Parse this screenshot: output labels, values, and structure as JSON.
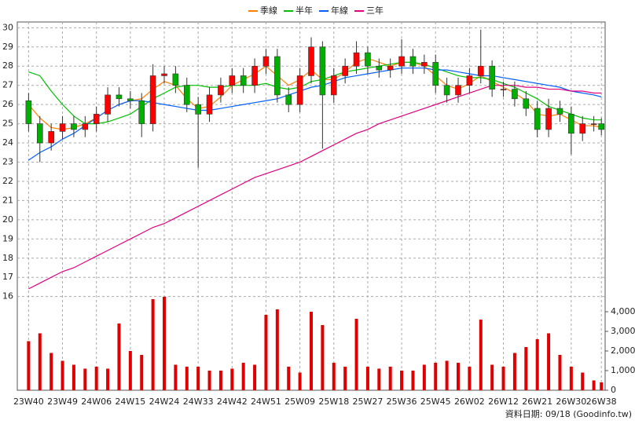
{
  "chart_data": {
    "type": "candlestick",
    "x": [
      0,
      3,
      6,
      9,
      12,
      15,
      18,
      21,
      24,
      27,
      30,
      33,
      36,
      39,
      42,
      45,
      48,
      51,
      54,
      57,
      60,
      63,
      66,
      69,
      72,
      75,
      78,
      81,
      84,
      87,
      90,
      93,
      96,
      99,
      102,
      105,
      108,
      111,
      114,
      117,
      120,
      123,
      126,
      129,
      132,
      135,
      138,
      141,
      144,
      147,
      150,
      152
    ],
    "open": [
      26.2,
      25.0,
      24.0,
      24.6,
      25.0,
      24.7,
      25.0,
      25.5,
      26.5,
      26.3,
      26.2,
      25.0,
      27.5,
      27.6,
      27.0,
      26.0,
      25.5,
      26.5,
      27.0,
      27.5,
      27.0,
      28.0,
      28.5,
      26.5,
      26.0,
      27.5,
      29.0,
      26.5,
      27.5,
      28.0,
      28.7,
      28.0,
      27.8,
      28.0,
      28.5,
      28.0,
      28.2,
      27.0,
      26.5,
      27.0,
      27.5,
      28.0,
      26.8,
      26.8,
      26.3,
      25.8,
      24.7,
      25.8,
      25.5,
      24.5,
      25.0,
      25.0
    ],
    "high": [
      26.6,
      25.4,
      25.0,
      25.4,
      25.4,
      25.4,
      25.9,
      26.9,
      26.9,
      26.7,
      26.6,
      28.1,
      28.0,
      28.0,
      27.4,
      26.4,
      26.9,
      27.4,
      27.9,
      27.9,
      28.4,
      28.9,
      28.9,
      26.9,
      27.9,
      29.5,
      29.3,
      27.9,
      28.4,
      29.3,
      29.0,
      28.4,
      28.4,
      29.4,
      28.9,
      28.6,
      28.6,
      27.4,
      27.4,
      27.9,
      29.9,
      28.3,
      27.2,
      27.2,
      26.7,
      26.2,
      26.3,
      26.2,
      25.9,
      25.4,
      25.4,
      25.3
    ],
    "low": [
      24.6,
      23.0,
      23.6,
      24.2,
      24.3,
      24.3,
      24.6,
      25.1,
      25.9,
      25.8,
      24.3,
      24.6,
      27.1,
      26.6,
      25.6,
      22.7,
      25.1,
      26.1,
      26.6,
      26.6,
      26.6,
      27.6,
      26.1,
      25.6,
      25.6,
      27.1,
      23.7,
      26.1,
      27.1,
      27.6,
      27.6,
      27.4,
      27.4,
      27.6,
      27.6,
      27.6,
      26.6,
      26.1,
      26.1,
      26.6,
      27.1,
      26.4,
      26.4,
      25.9,
      25.4,
      24.3,
      24.3,
      25.1,
      23.4,
      24.1,
      24.6,
      24.4
    ],
    "close": [
      25.0,
      24.0,
      24.6,
      25.0,
      24.7,
      25.0,
      25.5,
      26.5,
      26.3,
      26.2,
      25.0,
      27.5,
      27.6,
      27.0,
      26.0,
      25.5,
      26.5,
      27.0,
      27.5,
      27.0,
      28.0,
      28.5,
      26.5,
      26.0,
      27.5,
      29.0,
      26.5,
      27.5,
      28.0,
      28.7,
      28.0,
      27.8,
      28.0,
      28.5,
      28.0,
      28.2,
      27.0,
      26.5,
      27.0,
      27.5,
      28.0,
      26.8,
      26.8,
      26.3,
      25.8,
      24.7,
      25.8,
      25.5,
      24.5,
      25.0,
      25.0,
      24.7
    ],
    "volume": [
      2500,
      2900,
      1900,
      1500,
      1300,
      1100,
      1200,
      1100,
      3400,
      2000,
      1800,
      4640,
      4760,
      1300,
      1200,
      1200,
      1000,
      1000,
      1100,
      1400,
      1300,
      3840,
      4120,
      1200,
      900,
      4000,
      3320,
      1400,
      1200,
      3640,
      1200,
      1100,
      1200,
      1000,
      1000,
      1300,
      1400,
      1500,
      1400,
      1200,
      3600,
      1300,
      1200,
      1900,
      2200,
      2600,
      2900,
      1800,
      1200,
      900,
      500,
      400
    ],
    "up_color": "#ff0000",
    "down_color": "#00b000",
    "volume_color": "#e00000",
    "series": [
      {
        "name": "季線",
        "color": "#ff8000",
        "values": [
          26.0,
          25.3,
          24.8,
          24.7,
          24.8,
          25.0,
          25.3,
          25.7,
          26.0,
          26.2,
          26.3,
          26.8,
          27.2,
          27.0,
          26.3,
          25.8,
          25.9,
          26.4,
          27.0,
          27.3,
          27.6,
          28.0,
          27.5,
          27.0,
          27.3,
          27.8,
          27.3,
          27.3,
          27.7,
          28.2,
          28.4,
          28.2,
          28.0,
          28.2,
          28.2,
          28.0,
          27.5,
          27.0,
          26.8,
          27.1,
          27.5,
          27.2,
          26.9,
          26.6,
          26.2,
          25.5,
          25.4,
          25.5,
          25.2,
          24.9,
          24.9,
          24.8
        ]
      },
      {
        "name": "半年",
        "color": "#00c000",
        "values": [
          27.7,
          27.5,
          26.7,
          26.0,
          25.4,
          25.0,
          25.0,
          25.1,
          25.3,
          25.5,
          25.9,
          26.3,
          26.6,
          26.9,
          27.0,
          27.0,
          26.9,
          26.9,
          27.0,
          27.0,
          27.0,
          27.1,
          26.9,
          26.8,
          26.9,
          27.2,
          27.3,
          27.5,
          27.7,
          27.8,
          27.9,
          28.0,
          28.1,
          28.2,
          28.2,
          28.1,
          27.9,
          27.7,
          27.5,
          27.4,
          27.4,
          27.3,
          27.1,
          26.9,
          26.6,
          26.3,
          25.9,
          25.7,
          25.5,
          25.3,
          25.2,
          25.2
        ]
      },
      {
        "name": "年線",
        "color": "#0060ff",
        "values": [
          23.1,
          23.5,
          23.8,
          24.2,
          24.5,
          24.9,
          25.3,
          25.7,
          26.0,
          26.2,
          26.2,
          26.1,
          26.0,
          25.9,
          25.8,
          25.7,
          25.7,
          25.8,
          25.9,
          26.0,
          26.1,
          26.2,
          26.3,
          26.5,
          26.7,
          26.9,
          27.0,
          27.2,
          27.4,
          27.5,
          27.6,
          27.7,
          27.8,
          27.9,
          27.9,
          27.9,
          27.8,
          27.8,
          27.7,
          27.6,
          27.5,
          27.5,
          27.4,
          27.3,
          27.2,
          27.1,
          27.0,
          26.9,
          26.7,
          26.6,
          26.5,
          26.4
        ]
      },
      {
        "name": "三年",
        "color": "#e0007f",
        "values": [
          16.4,
          16.7,
          17.0,
          17.3,
          17.5,
          17.8,
          18.1,
          18.4,
          18.7,
          19.0,
          19.3,
          19.6,
          19.8,
          20.1,
          20.4,
          20.7,
          21.0,
          21.3,
          21.6,
          21.9,
          22.2,
          22.4,
          22.6,
          22.8,
          23.0,
          23.3,
          23.6,
          23.9,
          24.2,
          24.5,
          24.7,
          25.0,
          25.2,
          25.4,
          25.6,
          25.8,
          26.0,
          26.2,
          26.4,
          26.6,
          26.8,
          27.0,
          27.0,
          27.0,
          26.9,
          26.9,
          26.8,
          26.8,
          26.7,
          26.7,
          26.6,
          26.6
        ]
      }
    ],
    "xlim": [
      -3,
      153
    ],
    "xticks": [
      {
        "value": 0,
        "label": "23W40"
      },
      {
        "value": 9,
        "label": "23W49"
      },
      {
        "value": 18,
        "label": "24W06"
      },
      {
        "value": 27,
        "label": "24W15"
      },
      {
        "value": 36,
        "label": "24W24"
      },
      {
        "value": 45,
        "label": "24W33"
      },
      {
        "value": 54,
        "label": "24W42"
      },
      {
        "value": 63,
        "label": "24W51"
      },
      {
        "value": 72,
        "label": "25W09"
      },
      {
        "value": 81,
        "label": "25W18"
      },
      {
        "value": 90,
        "label": "25W27"
      },
      {
        "value": 99,
        "label": "25W36"
      },
      {
        "value": 108,
        "label": "25W45"
      },
      {
        "value": 117,
        "label": "26W02"
      },
      {
        "value": 126,
        "label": "26W12"
      },
      {
        "value": 135,
        "label": "26W21"
      },
      {
        "value": 144,
        "label": "26W30"
      },
      {
        "value": 152,
        "label": "26W38"
      }
    ],
    "ylim": [
      15.7,
      30.3
    ],
    "yticks": [
      16,
      17,
      18,
      19,
      20,
      21,
      22,
      23,
      24,
      25,
      26,
      27,
      28,
      29,
      30
    ],
    "y2lim": [
      0,
      4800
    ],
    "y2ticks": [
      0,
      {
        "value": 1000,
        "label": "1,000"
      },
      {
        "value": 2000,
        "label": "2,000"
      },
      {
        "value": 3000,
        "label": "3,000"
      },
      {
        "value": 4000,
        "label": "4,000"
      }
    ],
    "grid": true,
    "note": "資料日期: 09/18 (Goodinfo.tw)"
  }
}
